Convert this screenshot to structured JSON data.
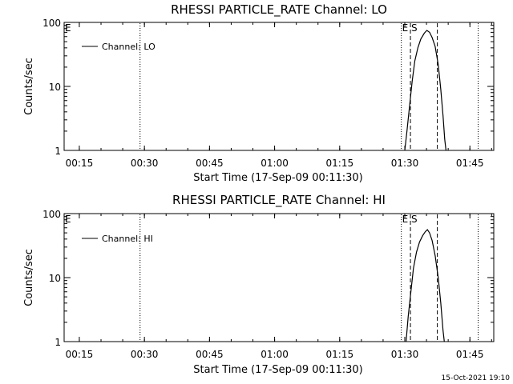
{
  "chart_data": [
    {
      "type": "line",
      "title": "RHESSI PARTICLE_RATE Channel: LO",
      "xlabel": "Start Time (17-Sep-09 00:11:30)",
      "ylabel": "Counts/sec",
      "yscale": "log",
      "ylim": [
        1,
        100
      ],
      "xlim_minutes": [
        0,
        99
      ],
      "x_ticks": [
        {
          "minute": 3.5,
          "label": "00:15"
        },
        {
          "minute": 18.5,
          "label": "00:30"
        },
        {
          "minute": 33.5,
          "label": "00:45"
        },
        {
          "minute": 48.5,
          "label": "01:00"
        },
        {
          "minute": 63.5,
          "label": "01:15"
        },
        {
          "minute": 78.5,
          "label": "01:30"
        },
        {
          "minute": 93.5,
          "label": "01:45"
        }
      ],
      "y_ticks": [
        {
          "value": 1,
          "label": "1"
        },
        {
          "value": 10,
          "label": "10"
        },
        {
          "value": 100,
          "label": "100"
        }
      ],
      "legend": {
        "label": "Channel: LO",
        "position": "top-left"
      },
      "event_markers": [
        {
          "label": "E",
          "minute": 0,
          "style": "label-only"
        },
        {
          "minute": 17.5,
          "style": "dotted"
        },
        {
          "minute": 77.7,
          "style": "dotted"
        },
        {
          "label": "E",
          "minute": 77.7,
          "style": "label-only"
        },
        {
          "label": "S",
          "minute": 79.8,
          "style": "dashed"
        },
        {
          "minute": 86.0,
          "style": "dashed"
        },
        {
          "minute": 95.4,
          "style": "dotted"
        }
      ],
      "series": [
        {
          "name": "Channel: LO",
          "x": [
            78.5,
            79.0,
            79.6,
            80.2,
            80.8,
            81.5,
            82.2,
            83.0,
            83.6,
            84.2,
            84.8,
            85.5,
            86.2,
            86.8,
            87.3,
            87.7,
            88.0
          ],
          "y": [
            1,
            2,
            5,
            12,
            25,
            40,
            55,
            68,
            75,
            70,
            58,
            42,
            22,
            9,
            3.5,
            1.5,
            1
          ]
        }
      ]
    },
    {
      "type": "line",
      "title": "RHESSI PARTICLE_RATE Channel: HI",
      "xlabel": "Start Time (17-Sep-09 00:11:30)",
      "ylabel": "Counts/sec",
      "yscale": "log",
      "ylim": [
        1,
        100
      ],
      "xlim_minutes": [
        0,
        99
      ],
      "x_ticks": [
        {
          "minute": 3.5,
          "label": "00:15"
        },
        {
          "minute": 18.5,
          "label": "00:30"
        },
        {
          "minute": 33.5,
          "label": "00:45"
        },
        {
          "minute": 48.5,
          "label": "01:00"
        },
        {
          "minute": 63.5,
          "label": "01:15"
        },
        {
          "minute": 78.5,
          "label": "01:30"
        },
        {
          "minute": 93.5,
          "label": "01:45"
        }
      ],
      "y_ticks": [
        {
          "value": 1,
          "label": "1"
        },
        {
          "value": 10,
          "label": "10"
        },
        {
          "value": 100,
          "label": "100"
        }
      ],
      "legend": {
        "label": "Channel: HI",
        "position": "top-left"
      },
      "event_markers": [
        {
          "label": "E",
          "minute": 0,
          "style": "label-only"
        },
        {
          "minute": 17.5,
          "style": "dotted"
        },
        {
          "minute": 77.7,
          "style": "dotted"
        },
        {
          "label": "E",
          "minute": 77.7,
          "style": "label-only"
        },
        {
          "label": "S",
          "minute": 79.8,
          "style": "dashed"
        },
        {
          "minute": 86.0,
          "style": "dashed"
        },
        {
          "minute": 95.4,
          "style": "dotted"
        }
      ],
      "series": [
        {
          "name": "Channel: HI",
          "x": [
            78.8,
            79.3,
            79.9,
            80.5,
            81.2,
            81.9,
            82.6,
            83.2,
            83.7,
            84.2,
            84.8,
            85.5,
            86.2,
            86.8,
            87.3,
            87.6
          ],
          "y": [
            1,
            2.5,
            6,
            14,
            25,
            36,
            45,
            52,
            56,
            50,
            38,
            22,
            10,
            4,
            1.5,
            1
          ]
        }
      ]
    }
  ],
  "footer": {
    "timestamp": "15-Oct-2021 19:10"
  }
}
